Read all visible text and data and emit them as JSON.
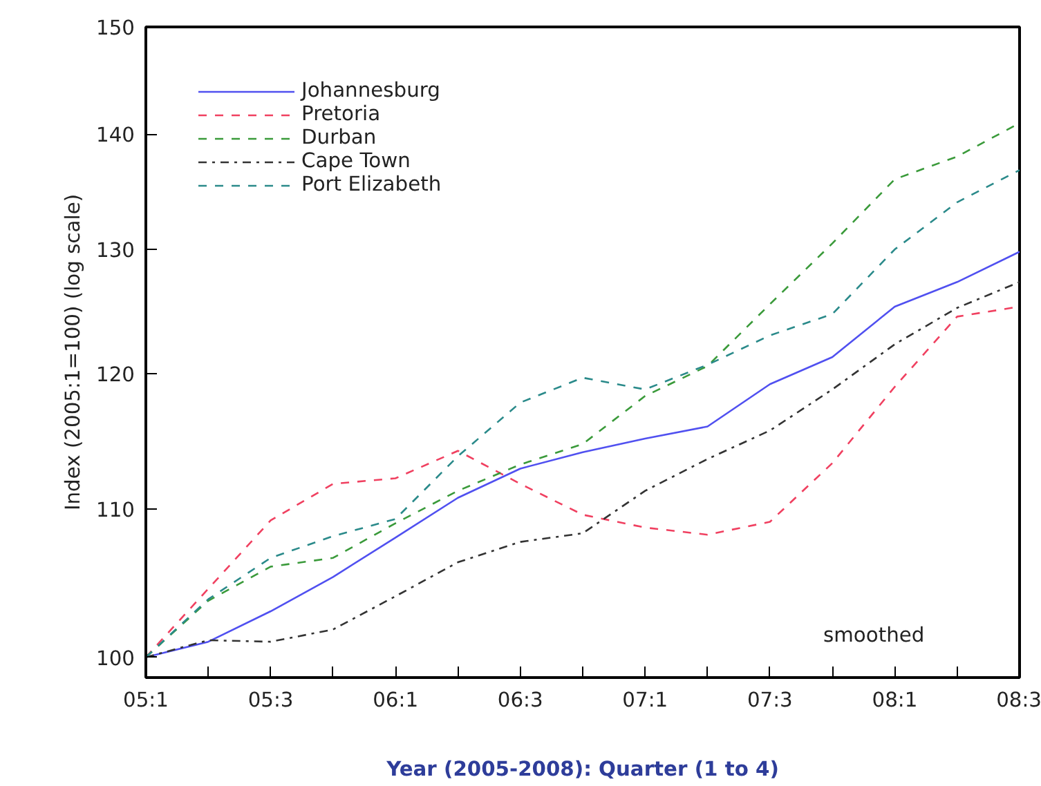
{
  "chart_data": {
    "type": "line",
    "xlabel": "Year (2005-2008): Quarter (1 to 4)",
    "ylabel": "Index (2005:1=100) (log scale)",
    "categories": [
      "05:1",
      null,
      "05:3",
      null,
      "06:1",
      null,
      "06:3",
      null,
      "07:1",
      null,
      "07:3",
      null,
      "08:1",
      null,
      "08:3"
    ],
    "log": true,
    "ylim": [
      98.7,
      150
    ],
    "yticks": [
      100,
      110,
      120,
      130,
      140,
      150
    ],
    "grid": false,
    "legend": "top left",
    "annotations": [
      "smoothed"
    ],
    "series": [
      {
        "name": "Johannesburg",
        "color": "#5050f0",
        "line_style": "solid",
        "values": [
          100,
          101,
          103,
          105.3,
          108,
          110.8,
          112.9,
          114.1,
          115.1,
          116,
          119.2,
          121.3,
          125.3,
          127.3,
          129.8
        ]
      },
      {
        "name": "Pretoria",
        "color": "#f04060",
        "line_style": "dashed",
        "values": [
          100,
          104.5,
          109.2,
          111.8,
          112.2,
          114.2,
          111.8,
          109.6,
          108.7,
          108.2,
          109.1,
          113.3,
          119,
          124.5,
          125.3
        ]
      },
      {
        "name": "Durban",
        "color": "#3a9a3a",
        "line_style": "dashed",
        "values": [
          100,
          103.7,
          106,
          106.6,
          109,
          111.3,
          113.2,
          114.7,
          118.3,
          120.6,
          125.5,
          130.5,
          136,
          138,
          141
        ]
      },
      {
        "name": "Cape Town",
        "color": "#333333",
        "line_style": "dashdot",
        "values": [
          100,
          101.1,
          101,
          101.8,
          104,
          106.3,
          107.7,
          108.3,
          111.3,
          113.6,
          115.7,
          118.8,
          122.3,
          125.2,
          127.3
        ]
      },
      {
        "name": "Port Elizabeth",
        "color": "#2a8a8a",
        "line_style": "dashed",
        "values": [
          100,
          103.8,
          106.6,
          108.1,
          109.3,
          113.8,
          117.8,
          119.7,
          118.8,
          120.7,
          123,
          124.7,
          130,
          134,
          136.8
        ]
      }
    ]
  }
}
